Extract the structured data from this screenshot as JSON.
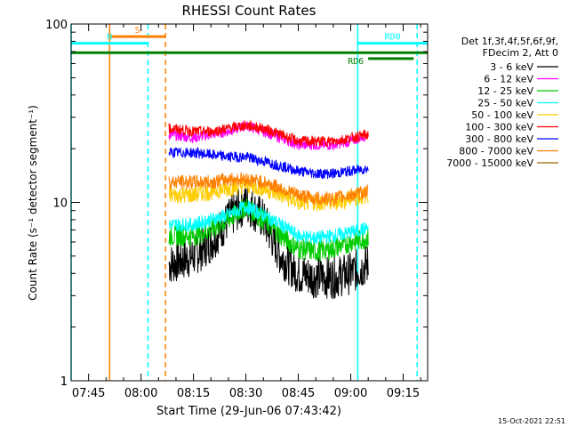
{
  "chart_data": {
    "type": "line",
    "title": "RHESSI Count Rates",
    "xlabel": "Start Time (29-Jun-06 07:43:42)",
    "ylabel": "Count Rate (s⁻¹ detector segment⁻¹)",
    "yscale": "log",
    "ylim": [
      1,
      100
    ],
    "xlim": [
      "07:40",
      "09:22"
    ],
    "x_ticks": [
      "07:45",
      "08:00",
      "08:15",
      "08:30",
      "08:45",
      "09:00",
      "09:15"
    ],
    "y_ticks": [
      "1",
      "10",
      "100"
    ],
    "legend_header": [
      "Det 1f,3f,4f,5f,6f,9f,",
      "FDecim 2, Att 0"
    ],
    "legend_position": "right",
    "timestamp": "15-Oct-2021 22:51",
    "data_start": "08:08",
    "data_end": "09:06",
    "series": [
      {
        "name": "3 - 6 keV",
        "color": "#000000",
        "x": [
          "08:08",
          "08:15",
          "08:20",
          "08:25",
          "08:30",
          "08:35",
          "08:40",
          "08:45",
          "08:50",
          "08:55",
          "09:00",
          "09:05"
        ],
        "y": [
          4.5,
          5.0,
          6.0,
          8.0,
          10.0,
          8.0,
          5.0,
          4.0,
          3.8,
          3.8,
          4.0,
          4.5
        ]
      },
      {
        "name": "6 - 12 keV",
        "color": "#ff00ff",
        "x": [
          "08:08",
          "08:15",
          "08:20",
          "08:25",
          "08:30",
          "08:35",
          "08:40",
          "08:45",
          "08:50",
          "08:55",
          "09:00",
          "09:05"
        ],
        "y": [
          24,
          23,
          24,
          25,
          27,
          25,
          23,
          21,
          21,
          21,
          22,
          24
        ]
      },
      {
        "name": "12 - 25 keV",
        "color": "#00cc00",
        "x": [
          "08:08",
          "08:15",
          "08:20",
          "08:25",
          "08:30",
          "08:35",
          "08:40",
          "08:45",
          "08:50",
          "08:55",
          "09:00",
          "09:05"
        ],
        "y": [
          6.5,
          6.5,
          7.0,
          8.0,
          9.5,
          8.0,
          6.5,
          5.5,
          5.3,
          5.5,
          6.0,
          6.3
        ]
      },
      {
        "name": "25 - 50 keV",
        "color": "#00ffff",
        "x": [
          "08:08",
          "08:15",
          "08:20",
          "08:25",
          "08:30",
          "08:35",
          "08:40",
          "08:45",
          "08:50",
          "08:55",
          "09:00",
          "09:05"
        ],
        "y": [
          7.5,
          7.5,
          8.0,
          8.5,
          9.5,
          8.5,
          7.5,
          6.5,
          6.3,
          6.5,
          6.8,
          7.2
        ]
      },
      {
        "name": "50 - 100 keV",
        "color": "#ffcc00",
        "x": [
          "08:08",
          "08:15",
          "08:20",
          "08:25",
          "08:30",
          "08:35",
          "08:40",
          "08:45",
          "08:50",
          "08:55",
          "09:00",
          "09:05"
        ],
        "y": [
          11,
          11,
          11.5,
          12,
          12.5,
          12,
          11,
          10,
          10,
          10,
          10.5,
          11
        ]
      },
      {
        "name": "100 - 300 keV",
        "color": "#ff0000",
        "x": [
          "08:08",
          "08:15",
          "08:20",
          "08:25",
          "08:30",
          "08:35",
          "08:40",
          "08:45",
          "08:50",
          "08:55",
          "09:00",
          "09:05"
        ],
        "y": [
          26,
          25,
          25,
          26,
          27,
          26,
          24,
          22,
          22,
          22,
          23,
          24
        ]
      },
      {
        "name": "300 - 800 keV",
        "color": "#0000ff",
        "x": [
          "08:08",
          "08:15",
          "08:20",
          "08:25",
          "08:30",
          "08:35",
          "08:40",
          "08:45",
          "08:50",
          "08:55",
          "09:00",
          "09:05"
        ],
        "y": [
          19,
          19,
          18.5,
          18,
          18,
          17,
          16,
          15,
          14.5,
          14.5,
          15,
          15.5
        ]
      },
      {
        "name": "800 - 7000 keV",
        "color": "#ff8000",
        "x": [
          "08:08",
          "08:15",
          "08:20",
          "08:25",
          "08:30",
          "08:35",
          "08:40",
          "08:45",
          "08:50",
          "08:55",
          "09:00",
          "09:05"
        ],
        "y": [
          13,
          13,
          13,
          13.5,
          13.5,
          13,
          12,
          11,
          10.5,
          10.5,
          11,
          11.5
        ]
      },
      {
        "name": "7000 - 15000 keV",
        "color": "#996600",
        "x": [],
        "y": []
      }
    ],
    "annotations": [
      {
        "label": "S",
        "color": "#ff8000",
        "x_start": "07:51",
        "x_end": "08:07",
        "y": 85
      },
      {
        "label": "N",
        "color": "#00ffff",
        "x_start": "07:40",
        "x_end": "08:02",
        "y": 78
      },
      {
        "label": "",
        "color": "#008000",
        "x_start": "07:40",
        "x_end": "09:22",
        "y": 69
      },
      {
        "label": "RD0",
        "color": "#00ffff",
        "x_start": "09:02",
        "x_end": "09:22",
        "y": 78
      },
      {
        "label": "RD6",
        "color": "#008000",
        "x_start": "09:05",
        "x_end": "09:18",
        "y": 64
      }
    ],
    "vlines": [
      {
        "x": "07:40",
        "color": "#00ffff",
        "style": "solid"
      },
      {
        "x": "07:51",
        "color": "#ff8000",
        "style": "solid"
      },
      {
        "x": "08:02",
        "color": "#00ffff",
        "style": "dashed"
      },
      {
        "x": "08:07",
        "color": "#ff8000",
        "style": "dashed"
      },
      {
        "x": "09:02",
        "color": "#00ffff",
        "style": "solid"
      },
      {
        "x": "09:19",
        "color": "#00ffff",
        "style": "dashed"
      }
    ]
  }
}
